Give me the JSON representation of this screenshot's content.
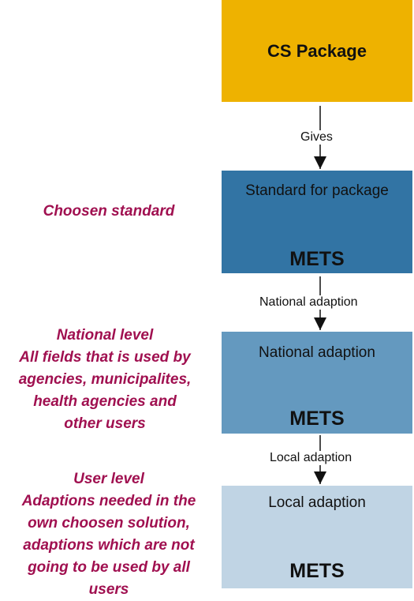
{
  "boxes": {
    "cs_package": {
      "title": "CS Package"
    },
    "standard": {
      "subtitle": "Standard for package",
      "label": "METS"
    },
    "national": {
      "subtitle": "National adaption",
      "label": "METS"
    },
    "local": {
      "subtitle": "Local adaption",
      "label": "METS"
    }
  },
  "connectors": {
    "gives": "Gives",
    "national_adaption": "National adaption",
    "local_adaption": "Local adaption"
  },
  "notes": {
    "chosen": [
      "Choosen standard"
    ],
    "national": [
      "National level",
      "All fields that is used by",
      "agencies, municipalites,",
      "health agencies and",
      "other users"
    ],
    "user": [
      "User level",
      "Adaptions needed in the",
      "own choosen solution,",
      "adaptions which are not",
      "going to be used by all",
      "users"
    ]
  },
  "colors": {
    "cs_package": "#eeb200",
    "standard": "#3274a4",
    "national": "#6499bf",
    "local": "#c0d4e4",
    "note_text": "#a01050"
  }
}
